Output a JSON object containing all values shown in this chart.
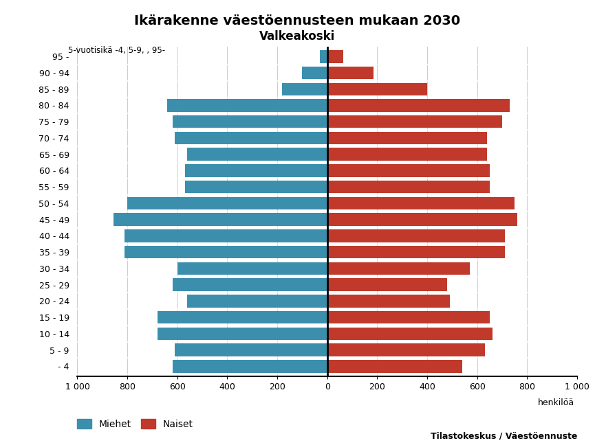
{
  "title_line1": "Ikärakenne väestöennusteen mukaan 2030",
  "title_line2": "Valkeakoski",
  "subtitle": "5-vuotisikä -4, 5-9, , 95-",
  "xlabel": "henkilöä",
  "age_groups_bottom_to_top": [
    "- 4",
    "5 - 9",
    "10 - 14",
    "15 - 19",
    "20 - 24",
    "25 - 29",
    "30 - 34",
    "35 - 39",
    "40 - 44",
    "45 - 49",
    "50 - 54",
    "55 - 59",
    "60 - 64",
    "65 - 69",
    "70 - 74",
    "75 - 79",
    "80 - 84",
    "85 - 89",
    "90 - 94",
    "95 -"
  ],
  "men_bottom_to_top": [
    620,
    610,
    680,
    680,
    560,
    620,
    600,
    810,
    810,
    855,
    800,
    570,
    570,
    560,
    610,
    620,
    640,
    180,
    100,
    30
  ],
  "women_bottom_to_top": [
    540,
    630,
    660,
    650,
    490,
    480,
    570,
    710,
    710,
    760,
    750,
    650,
    650,
    640,
    640,
    700,
    730,
    400,
    185,
    65
  ],
  "men_color": "#3b8fad",
  "women_color": "#c0392b",
  "background_color": "#ffffff",
  "grid_color": "#cccccc",
  "xlim": 1000,
  "xtick_positions": [
    -1000,
    -800,
    -600,
    -400,
    -200,
    0,
    200,
    400,
    600,
    800,
    1000
  ],
  "xtick_labels": [
    "1 000",
    "800",
    "600",
    "400",
    "200",
    "0",
    "200",
    "400",
    "600",
    "800",
    "1 000"
  ],
  "legend_labels": [
    "Miehet",
    "Naiset"
  ],
  "source_text": "Tilastokeskus / Väestöennuste",
  "bar_height": 0.78
}
